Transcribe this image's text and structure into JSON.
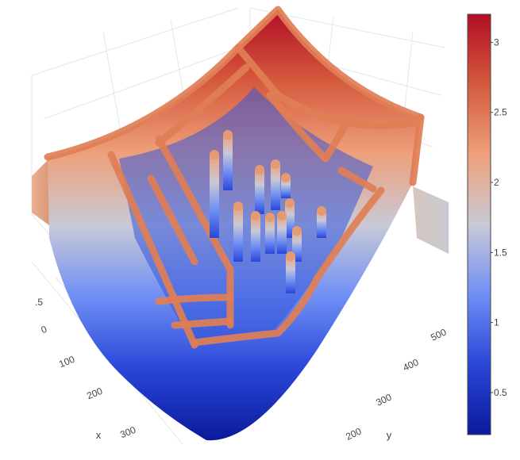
{
  "chart_data": {
    "type": "surface",
    "title": "",
    "axes": {
      "x": {
        "label": "x",
        "ticks": [
          "0",
          "100",
          "200",
          "300"
        ]
      },
      "y": {
        "label": "y",
        "ticks": [
          "200",
          "300",
          "400",
          "500"
        ]
      },
      "z": {
        "label": "",
        "ticks": [
          ".5"
        ]
      }
    },
    "colorscale": {
      "name": "coolwarm",
      "range": [
        0.2,
        3.2
      ],
      "ticks": [
        0.5,
        1,
        1.5,
        2,
        2.5,
        3
      ],
      "tick_labels": [
        "0.5",
        "1",
        "1.5",
        "2",
        "2.5",
        "3"
      ],
      "stops": [
        "#0a1a9c",
        "#2a46d8",
        "#6f8ff5",
        "#c9c9d6",
        "#eea07a",
        "#d55a3e",
        "#b10d24"
      ]
    },
    "surface": {
      "rim_height": 2.5,
      "corner_peak": 3.1,
      "floor_height": 0.3,
      "pillar_height": 2.1,
      "pillar_count": 13
    }
  }
}
